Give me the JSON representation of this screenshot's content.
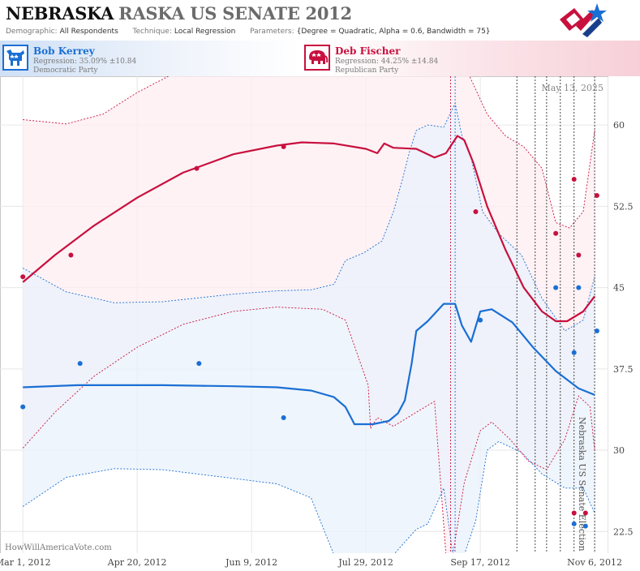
{
  "header": {
    "title_state": "NEBRASKA",
    "title_rest": "RASKA US SENATE 2012",
    "demographic_label": "Demographic:",
    "demographic_value": "All Respondents",
    "technique_label": "Technique:",
    "technique_value": "Local Regression",
    "parameters_label": "Parameters:",
    "parameters_value": "{Degree = Quadratic, Alpha = 0.6, Bandwidth = 75}"
  },
  "candidates": [
    {
      "name": "Bob Kerrey",
      "regression": "Regression: 35.09% ±10.84",
      "party": "Democratic Party",
      "color": "#1a6fd4",
      "icon": "donkey-icon"
    },
    {
      "name": "Deb Fischer",
      "regression": "Regression: 44.25% ±14.84",
      "party": "Republican Party",
      "color": "#c8103e",
      "icon": "elephant-icon"
    }
  ],
  "colors": {
    "dem": "#1a6fd4",
    "rep": "#c8103e",
    "dem_band": "#eaf1fb",
    "rep_band": "#fdeef1"
  },
  "chart_data": {
    "type": "line",
    "title": "Nebraska US Senate Election",
    "date_label": "May 13, 2025",
    "watermark": "HowWillAmericaVote.com",
    "xlim": [
      "2012-02-20",
      "2012-11-12"
    ],
    "ylim": [
      20.5,
      64.5
    ],
    "y_ticks": [
      22.5,
      30,
      37.5,
      45,
      52.5,
      60
    ],
    "y_tick_labels": [
      "22.5",
      "30",
      "37.5",
      "45",
      "52.5",
      "60"
    ],
    "x_ticks": [
      "2012-03-01",
      "2012-04-20",
      "2012-06-09",
      "2012-07-29",
      "2012-09-17",
      "2012-11-06"
    ],
    "x_tick_labels": [
      "Mar 1, 2012",
      "Apr 20, 2012",
      "Jun 9, 2012",
      "Jul 29, 2012",
      "Sep 17, 2012",
      "Nov 6, 2012"
    ],
    "grid": true,
    "event_lines": [
      {
        "date": "2012-09-04",
        "color": "rep"
      },
      {
        "date": "2012-09-06",
        "color": "dem"
      },
      {
        "date": "2012-10-03",
        "color": "dark"
      },
      {
        "date": "2012-10-11",
        "color": "dark"
      },
      {
        "date": "2012-10-16",
        "color": "dark"
      },
      {
        "date": "2012-10-22",
        "color": "dark"
      },
      {
        "date": "2012-10-28",
        "color": "dark"
      },
      {
        "date": "2012-11-06",
        "color": "dark"
      }
    ],
    "series": [
      {
        "name": "Deb Fischer",
        "key": "rep",
        "trend": [
          [
            "2012-03-01",
            45.5
          ],
          [
            "2012-03-15",
            48
          ],
          [
            "2012-04-01",
            50.7
          ],
          [
            "2012-04-20",
            53.3
          ],
          [
            "2012-05-10",
            55.6
          ],
          [
            "2012-06-01",
            57.3
          ],
          [
            "2012-06-20",
            58.1
          ],
          [
            "2012-07-01",
            58.4
          ],
          [
            "2012-07-15",
            58.3
          ],
          [
            "2012-07-29",
            57.8
          ],
          [
            "2012-08-03",
            57.4
          ],
          [
            "2012-08-06",
            58.3
          ],
          [
            "2012-08-10",
            57.9
          ],
          [
            "2012-08-20",
            57.8
          ],
          [
            "2012-08-28",
            57
          ],
          [
            "2012-09-02",
            57.4
          ],
          [
            "2012-09-07",
            59
          ],
          [
            "2012-09-10",
            58.6
          ],
          [
            "2012-09-14",
            56.5
          ],
          [
            "2012-09-20",
            52.5
          ],
          [
            "2012-09-28",
            48.5
          ],
          [
            "2012-10-06",
            45
          ],
          [
            "2012-10-14",
            42.8
          ],
          [
            "2012-10-20",
            41.9
          ],
          [
            "2012-10-25",
            41.9
          ],
          [
            "2012-11-01",
            42.8
          ],
          [
            "2012-11-06",
            44.2
          ]
        ],
        "upper": [
          [
            "2012-03-01",
            60.5
          ],
          [
            "2012-03-20",
            60.1
          ],
          [
            "2012-04-05",
            61
          ],
          [
            "2012-04-20",
            63
          ],
          [
            "2012-05-05",
            65
          ],
          [
            "2012-07-01",
            66
          ],
          [
            "2012-08-05",
            66
          ],
          [
            "2012-09-01",
            66
          ],
          [
            "2012-09-12",
            66
          ],
          [
            "2012-09-20",
            61
          ],
          [
            "2012-09-28",
            59
          ],
          [
            "2012-10-06",
            58
          ],
          [
            "2012-10-14",
            56
          ],
          [
            "2012-10-20",
            51
          ],
          [
            "2012-10-26",
            50.5
          ],
          [
            "2012-11-01",
            52
          ],
          [
            "2012-11-06",
            59.5
          ]
        ],
        "lower": [
          [
            "2012-03-01",
            30.2
          ],
          [
            "2012-03-15",
            33.5
          ],
          [
            "2012-04-01",
            36.8
          ],
          [
            "2012-04-20",
            39.5
          ],
          [
            "2012-05-10",
            41.6
          ],
          [
            "2012-06-01",
            42.8
          ],
          [
            "2012-06-20",
            43.2
          ],
          [
            "2012-07-10",
            43
          ],
          [
            "2012-07-20",
            42
          ],
          [
            "2012-07-30",
            36
          ],
          [
            "2012-07-31",
            32
          ],
          [
            "2012-08-03",
            33
          ],
          [
            "2012-08-10",
            32.2
          ],
          [
            "2012-08-20",
            33.5
          ],
          [
            "2012-08-28",
            34.5
          ],
          [
            "2012-09-02",
            19
          ],
          [
            "2012-09-05",
            19
          ],
          [
            "2012-09-10",
            27
          ],
          [
            "2012-09-17",
            31.8
          ],
          [
            "2012-09-22",
            32.6
          ],
          [
            "2012-09-30",
            31
          ],
          [
            "2012-10-08",
            29
          ],
          [
            "2012-10-16",
            28.2
          ],
          [
            "2012-10-24",
            31
          ],
          [
            "2012-10-30",
            35
          ],
          [
            "2012-11-04",
            34
          ],
          [
            "2012-11-06",
            30
          ]
        ],
        "points": [
          [
            "2012-03-01",
            46
          ],
          [
            "2012-03-22",
            48
          ],
          [
            "2012-05-16",
            56
          ],
          [
            "2012-06-23",
            58
          ],
          [
            "2012-09-15",
            52
          ],
          [
            "2012-10-20",
            50
          ],
          [
            "2012-10-28",
            55
          ],
          [
            "2012-10-30",
            48
          ],
          [
            "2012-11-07",
            53.5
          ],
          [
            "2012-10-28",
            24.2
          ],
          [
            "2012-11-02",
            24.2
          ]
        ]
      },
      {
        "name": "Bob Kerrey",
        "key": "dem",
        "trend": [
          [
            "2012-03-01",
            35.8
          ],
          [
            "2012-03-25",
            36
          ],
          [
            "2012-05-01",
            36
          ],
          [
            "2012-06-01",
            35.9
          ],
          [
            "2012-06-20",
            35.8
          ],
          [
            "2012-07-05",
            35.5
          ],
          [
            "2012-07-15",
            34.9
          ],
          [
            "2012-07-20",
            34
          ],
          [
            "2012-07-24",
            32.4
          ],
          [
            "2012-08-01",
            32.4
          ],
          [
            "2012-08-08",
            32.7
          ],
          [
            "2012-08-12",
            33.4
          ],
          [
            "2012-08-15",
            34.6
          ],
          [
            "2012-08-18",
            38
          ],
          [
            "2012-08-20",
            41
          ],
          [
            "2012-08-25",
            41.9
          ],
          [
            "2012-09-01",
            43.5
          ],
          [
            "2012-09-06",
            43.5
          ],
          [
            "2012-09-09",
            41.5
          ],
          [
            "2012-09-13",
            40
          ],
          [
            "2012-09-17",
            42.8
          ],
          [
            "2012-09-22",
            43
          ],
          [
            "2012-10-01",
            41.8
          ],
          [
            "2012-10-10",
            39.5
          ],
          [
            "2012-10-20",
            37.3
          ],
          [
            "2012-10-30",
            35.7
          ],
          [
            "2012-11-06",
            35.1
          ]
        ],
        "upper": [
          [
            "2012-03-01",
            46.8
          ],
          [
            "2012-03-20",
            44.6
          ],
          [
            "2012-04-10",
            43.6
          ],
          [
            "2012-05-01",
            43.7
          ],
          [
            "2012-06-01",
            44.4
          ],
          [
            "2012-06-20",
            44.7
          ],
          [
            "2012-07-05",
            44.8
          ],
          [
            "2012-07-15",
            45.3
          ],
          [
            "2012-07-20",
            47.5
          ],
          [
            "2012-07-28",
            48.2
          ],
          [
            "2012-08-05",
            49.3
          ],
          [
            "2012-08-10",
            52
          ],
          [
            "2012-08-14",
            55
          ],
          [
            "2012-08-17",
            57.5
          ],
          [
            "2012-08-20",
            59.5
          ],
          [
            "2012-08-25",
            60
          ],
          [
            "2012-09-01",
            59.8
          ],
          [
            "2012-09-06",
            62
          ],
          [
            "2012-09-09",
            59
          ],
          [
            "2012-09-13",
            57
          ],
          [
            "2012-09-18",
            52
          ],
          [
            "2012-09-25",
            50
          ],
          [
            "2012-10-05",
            48
          ],
          [
            "2012-10-14",
            44
          ],
          [
            "2012-10-24",
            41
          ],
          [
            "2012-11-01",
            42
          ],
          [
            "2012-11-06",
            46
          ]
        ],
        "lower": [
          [
            "2012-03-01",
            24.8
          ],
          [
            "2012-03-20",
            27.5
          ],
          [
            "2012-04-10",
            28.3
          ],
          [
            "2012-05-01",
            28.2
          ],
          [
            "2012-06-01",
            27.4
          ],
          [
            "2012-06-20",
            26.9
          ],
          [
            "2012-07-05",
            25.6
          ],
          [
            "2012-07-15",
            20
          ],
          [
            "2012-07-25",
            17
          ],
          [
            "2012-08-10",
            19.5
          ],
          [
            "2012-08-20",
            22.7
          ],
          [
            "2012-08-25",
            23.2
          ],
          [
            "2012-09-01",
            26.5
          ],
          [
            "2012-09-05",
            19.5
          ],
          [
            "2012-09-10",
            19.5
          ],
          [
            "2012-09-15",
            23.5
          ],
          [
            "2012-09-20",
            30
          ],
          [
            "2012-09-25",
            30.8
          ],
          [
            "2012-10-05",
            29.8
          ],
          [
            "2012-10-14",
            27.8
          ],
          [
            "2012-10-24",
            26.5
          ],
          [
            "2012-11-01",
            26.5
          ],
          [
            "2012-11-06",
            24.2
          ]
        ],
        "points": [
          [
            "2012-03-01",
            34
          ],
          [
            "2012-03-26",
            38
          ],
          [
            "2012-05-17",
            38
          ],
          [
            "2012-06-23",
            33
          ],
          [
            "2012-09-17",
            42
          ],
          [
            "2012-10-20",
            45
          ],
          [
            "2012-10-28",
            39
          ],
          [
            "2012-10-30",
            45
          ],
          [
            "2012-11-07",
            41
          ],
          [
            "2012-10-28",
            23.2
          ],
          [
            "2012-11-02",
            23
          ]
        ]
      }
    ]
  }
}
